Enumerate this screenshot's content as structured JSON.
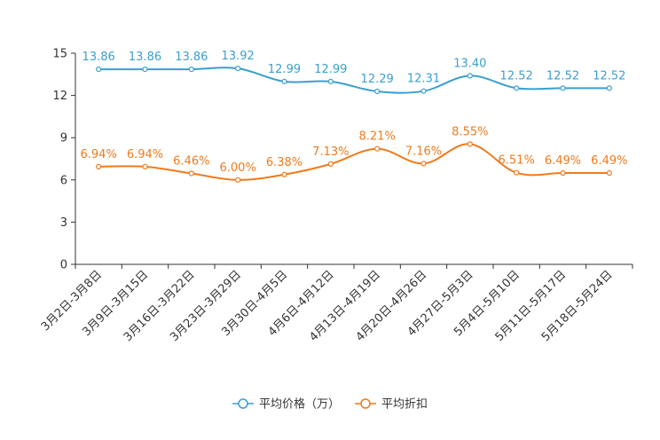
{
  "chart_data": {
    "type": "line",
    "categories": [
      "3月2日-3月8日",
      "3月9日-3月15日",
      "3月16日-3月22日",
      "3月23日-3月29日",
      "3月30日-4月5日",
      "4月6日-4月12日",
      "4月13日-4月19日",
      "4月20日-4月26日",
      "4月27日-5月3日",
      "5月4日-5月10日",
      "5月11日-5月17日",
      "5月18日-5月24日"
    ],
    "ylim": [
      0,
      15
    ],
    "yticks": [
      "0",
      "3",
      "6",
      "9",
      "12",
      "15"
    ],
    "grid": false,
    "legend_position": "bottom-center",
    "series": [
      {
        "name": "平均价格（万）",
        "color": "#3a9fd0",
        "values": [
          13.86,
          13.86,
          13.86,
          13.92,
          12.99,
          12.99,
          12.29,
          12.31,
          13.4,
          12.52,
          12.52,
          12.52
        ],
        "labels": [
          "13.86",
          "13.86",
          "13.86",
          "13.92",
          "12.99",
          "12.99",
          "12.29",
          "12.31",
          "13.40",
          "12.52",
          "12.52",
          "12.52"
        ]
      },
      {
        "name": "平均折扣",
        "color": "#f07a1c",
        "values": [
          6.94,
          6.94,
          6.46,
          6.0,
          6.38,
          7.13,
          8.21,
          7.16,
          8.55,
          6.51,
          6.49,
          6.49
        ],
        "labels": [
          "6.94%",
          "6.94%",
          "6.46%",
          "6.00%",
          "6.38%",
          "7.13%",
          "8.21%",
          "7.16%",
          "8.55%",
          "6.51%",
          "6.49%",
          "6.49%"
        ]
      }
    ]
  }
}
